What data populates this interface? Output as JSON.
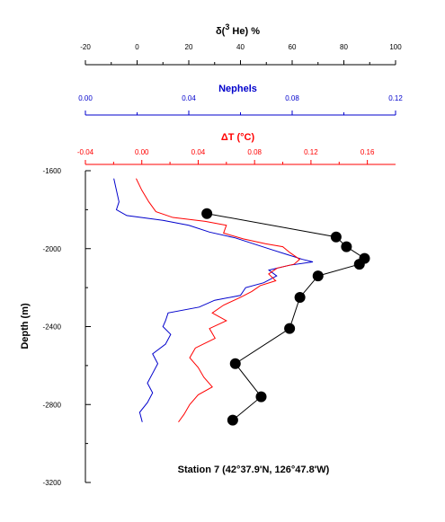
{
  "chart_data": {
    "type": "scatter",
    "caption": "Station 7 (42°37.9'N, 126°47.8'W)",
    "y_axis": {
      "label": "Depth (m)",
      "range": [
        -3200,
        -1600
      ],
      "ticks": [
        -1600,
        -2000,
        -2400,
        -2800,
        -3200
      ]
    },
    "top_axes": [
      {
        "key": "he",
        "label": "δ(³He) %",
        "label_main": "δ(",
        "label_sup": "3",
        "label_rest": " He) %",
        "color": "#000000",
        "range": [
          -20,
          100
        ],
        "ticks": [
          -20,
          0,
          20,
          40,
          60,
          80,
          100
        ],
        "tick_labels": [
          "-20",
          "0",
          "20",
          "40",
          "60",
          "80",
          "100"
        ]
      },
      {
        "key": "neph",
        "label": "Nephels",
        "color": "#0000cc",
        "range": [
          0.0,
          0.12
        ],
        "ticks": [
          0.0,
          0.04,
          0.08,
          0.12
        ],
        "tick_labels": [
          "0.00",
          "0.04",
          "0.08",
          "0.12"
        ]
      },
      {
        "key": "dt",
        "label": "ΔT (°C)",
        "color": "#ff0000",
        "range": [
          -0.04,
          0.18
        ],
        "ticks": [
          -0.04,
          0.0,
          0.04,
          0.08,
          0.12,
          0.16
        ],
        "tick_labels": [
          "-0.04",
          "0.00",
          "0.04",
          "0.08",
          "0.12",
          "0.16"
        ]
      }
    ],
    "series": [
      {
        "axis": "he",
        "style": "markers",
        "points": [
          [
            27,
            -1820
          ],
          [
            77,
            -1940
          ],
          [
            81,
            -1990
          ],
          [
            88,
            -2050
          ],
          [
            86,
            -2080
          ],
          [
            70,
            -2140
          ],
          [
            63,
            -2250
          ],
          [
            59,
            -2410
          ],
          [
            38,
            -2590
          ],
          [
            48,
            -2760
          ],
          [
            37,
            -2880
          ]
        ]
      },
      {
        "axis": "neph",
        "style": "line",
        "points": [
          [
            0.011,
            -1640
          ],
          [
            0.012,
            -1700
          ],
          [
            0.013,
            -1760
          ],
          [
            0.012,
            -1800
          ],
          [
            0.016,
            -1830
          ],
          [
            0.03,
            -1855
          ],
          [
            0.04,
            -1880
          ],
          [
            0.048,
            -1915
          ],
          [
            0.058,
            -1945
          ],
          [
            0.065,
            -1975
          ],
          [
            0.072,
            -2005
          ],
          [
            0.078,
            -2030
          ],
          [
            0.084,
            -2055
          ],
          [
            0.088,
            -2068
          ],
          [
            0.079,
            -2085
          ],
          [
            0.071,
            -2110
          ],
          [
            0.074,
            -2140
          ],
          [
            0.069,
            -2175
          ],
          [
            0.062,
            -2200
          ],
          [
            0.06,
            -2240
          ],
          [
            0.05,
            -2265
          ],
          [
            0.044,
            -2300
          ],
          [
            0.032,
            -2330
          ],
          [
            0.031,
            -2370
          ],
          [
            0.03,
            -2400
          ],
          [
            0.033,
            -2440
          ],
          [
            0.031,
            -2490
          ],
          [
            0.026,
            -2540
          ],
          [
            0.028,
            -2590
          ],
          [
            0.026,
            -2640
          ],
          [
            0.024,
            -2690
          ],
          [
            0.026,
            -2740
          ],
          [
            0.024,
            -2790
          ],
          [
            0.021,
            -2840
          ],
          [
            0.022,
            -2890
          ]
        ]
      },
      {
        "axis": "dt",
        "style": "line",
        "points": [
          [
            -0.004,
            -1640
          ],
          [
            0.0,
            -1700
          ],
          [
            0.005,
            -1760
          ],
          [
            0.01,
            -1810
          ],
          [
            0.022,
            -1840
          ],
          [
            0.045,
            -1860
          ],
          [
            0.06,
            -1880
          ],
          [
            0.058,
            -1920
          ],
          [
            0.072,
            -1950
          ],
          [
            0.088,
            -1975
          ],
          [
            0.1,
            -1990
          ],
          [
            0.105,
            -2020
          ],
          [
            0.112,
            -2055
          ],
          [
            0.108,
            -2080
          ],
          [
            0.096,
            -2100
          ],
          [
            0.09,
            -2130
          ],
          [
            0.095,
            -2165
          ],
          [
            0.084,
            -2190
          ],
          [
            0.078,
            -2220
          ],
          [
            0.07,
            -2250
          ],
          [
            0.058,
            -2290
          ],
          [
            0.05,
            -2330
          ],
          [
            0.06,
            -2370
          ],
          [
            0.048,
            -2410
          ],
          [
            0.052,
            -2460
          ],
          [
            0.038,
            -2510
          ],
          [
            0.034,
            -2560
          ],
          [
            0.04,
            -2610
          ],
          [
            0.044,
            -2660
          ],
          [
            0.05,
            -2710
          ],
          [
            0.04,
            -2750
          ],
          [
            0.034,
            -2800
          ],
          [
            0.03,
            -2850
          ],
          [
            0.026,
            -2890
          ]
        ]
      }
    ]
  }
}
